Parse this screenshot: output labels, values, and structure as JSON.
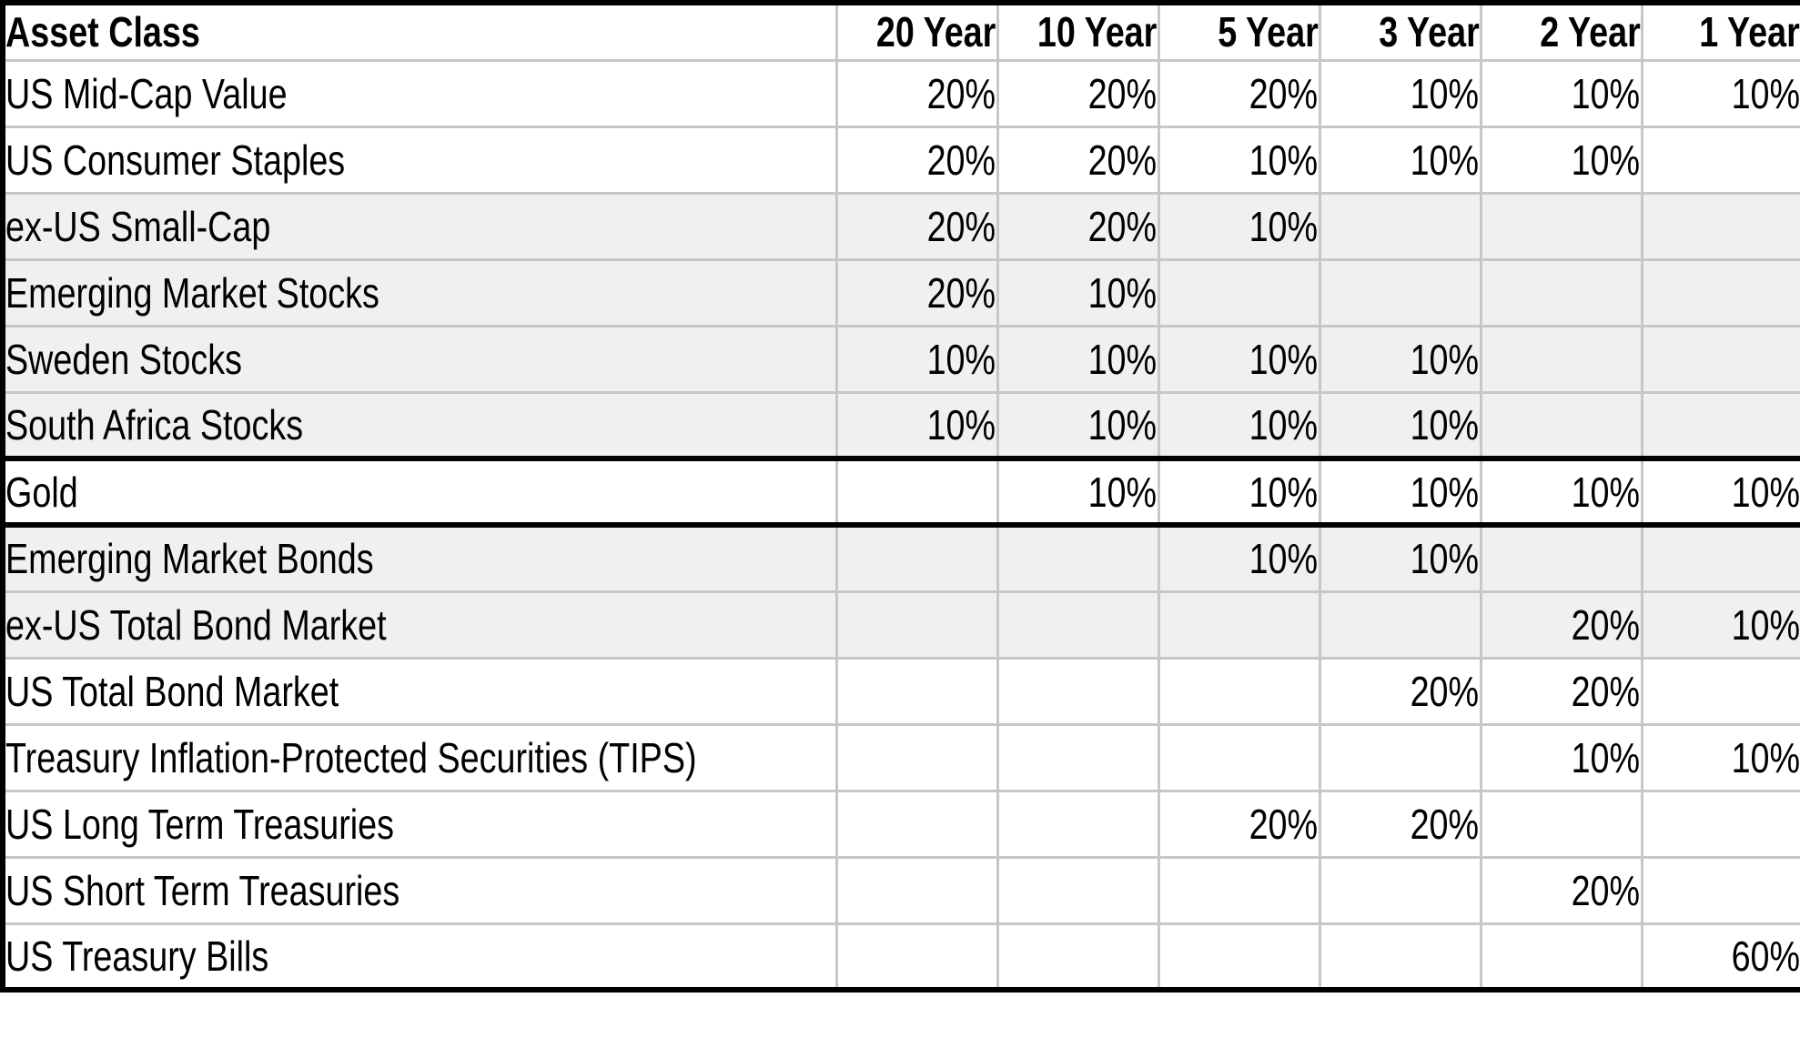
{
  "colors": {
    "row_shading": "#f0f0f0",
    "gridline": "#c7c7c7",
    "thick_border": "#000000",
    "background": "#ffffff",
    "text": "#000000"
  },
  "chart_data": {
    "type": "table",
    "columns": [
      "Asset Class",
      "20 Year",
      "10 Year",
      "5 Year",
      "3 Year",
      "2 Year",
      "1 Year"
    ],
    "rows": [
      {
        "label": "US Mid-Cap Value",
        "values": [
          "20%",
          "20%",
          "20%",
          "10%",
          "10%",
          "10%"
        ],
        "shaded": false,
        "thick_top": false,
        "thick_bottom": false
      },
      {
        "label": "US Consumer Staples",
        "values": [
          "20%",
          "20%",
          "10%",
          "10%",
          "10%",
          ""
        ],
        "shaded": false,
        "thick_top": false,
        "thick_bottom": false
      },
      {
        "label": "ex-US Small-Cap",
        "values": [
          "20%",
          "20%",
          "10%",
          "",
          "",
          ""
        ],
        "shaded": true,
        "thick_top": false,
        "thick_bottom": false
      },
      {
        "label": "Emerging Market Stocks",
        "values": [
          "20%",
          "10%",
          "",
          "",
          "",
          ""
        ],
        "shaded": true,
        "thick_top": false,
        "thick_bottom": false
      },
      {
        "label": "Sweden Stocks",
        "values": [
          "10%",
          "10%",
          "10%",
          "10%",
          "",
          ""
        ],
        "shaded": true,
        "thick_top": false,
        "thick_bottom": false
      },
      {
        "label": "South Africa Stocks",
        "values": [
          "10%",
          "10%",
          "10%",
          "10%",
          "",
          ""
        ],
        "shaded": true,
        "thick_top": false,
        "thick_bottom": false
      },
      {
        "label": "Gold",
        "values": [
          "",
          "10%",
          "10%",
          "10%",
          "10%",
          "10%"
        ],
        "shaded": false,
        "thick_top": true,
        "thick_bottom": true
      },
      {
        "label": "Emerging Market Bonds",
        "values": [
          "",
          "",
          "10%",
          "10%",
          "",
          ""
        ],
        "shaded": true,
        "thick_top": false,
        "thick_bottom": false
      },
      {
        "label": "ex-US Total Bond Market",
        "values": [
          "",
          "",
          "",
          "",
          "20%",
          "10%"
        ],
        "shaded": true,
        "thick_top": false,
        "thick_bottom": false
      },
      {
        "label": "US Total Bond Market",
        "values": [
          "",
          "",
          "",
          "20%",
          "20%",
          ""
        ],
        "shaded": false,
        "thick_top": false,
        "thick_bottom": false
      },
      {
        "label": "Treasury Inflation-Protected Securities (TIPS)",
        "values": [
          "",
          "",
          "",
          "",
          "10%",
          "10%"
        ],
        "shaded": false,
        "thick_top": false,
        "thick_bottom": false
      },
      {
        "label": "US Long Term Treasuries",
        "values": [
          "",
          "",
          "20%",
          "20%",
          "",
          ""
        ],
        "shaded": false,
        "thick_top": false,
        "thick_bottom": false
      },
      {
        "label": "US Short Term Treasuries",
        "values": [
          "",
          "",
          "",
          "",
          "20%",
          ""
        ],
        "shaded": false,
        "thick_top": false,
        "thick_bottom": false
      },
      {
        "label": "US Treasury Bills",
        "values": [
          "",
          "",
          "",
          "",
          "",
          "60%"
        ],
        "shaded": false,
        "thick_top": false,
        "thick_bottom": false
      }
    ]
  }
}
